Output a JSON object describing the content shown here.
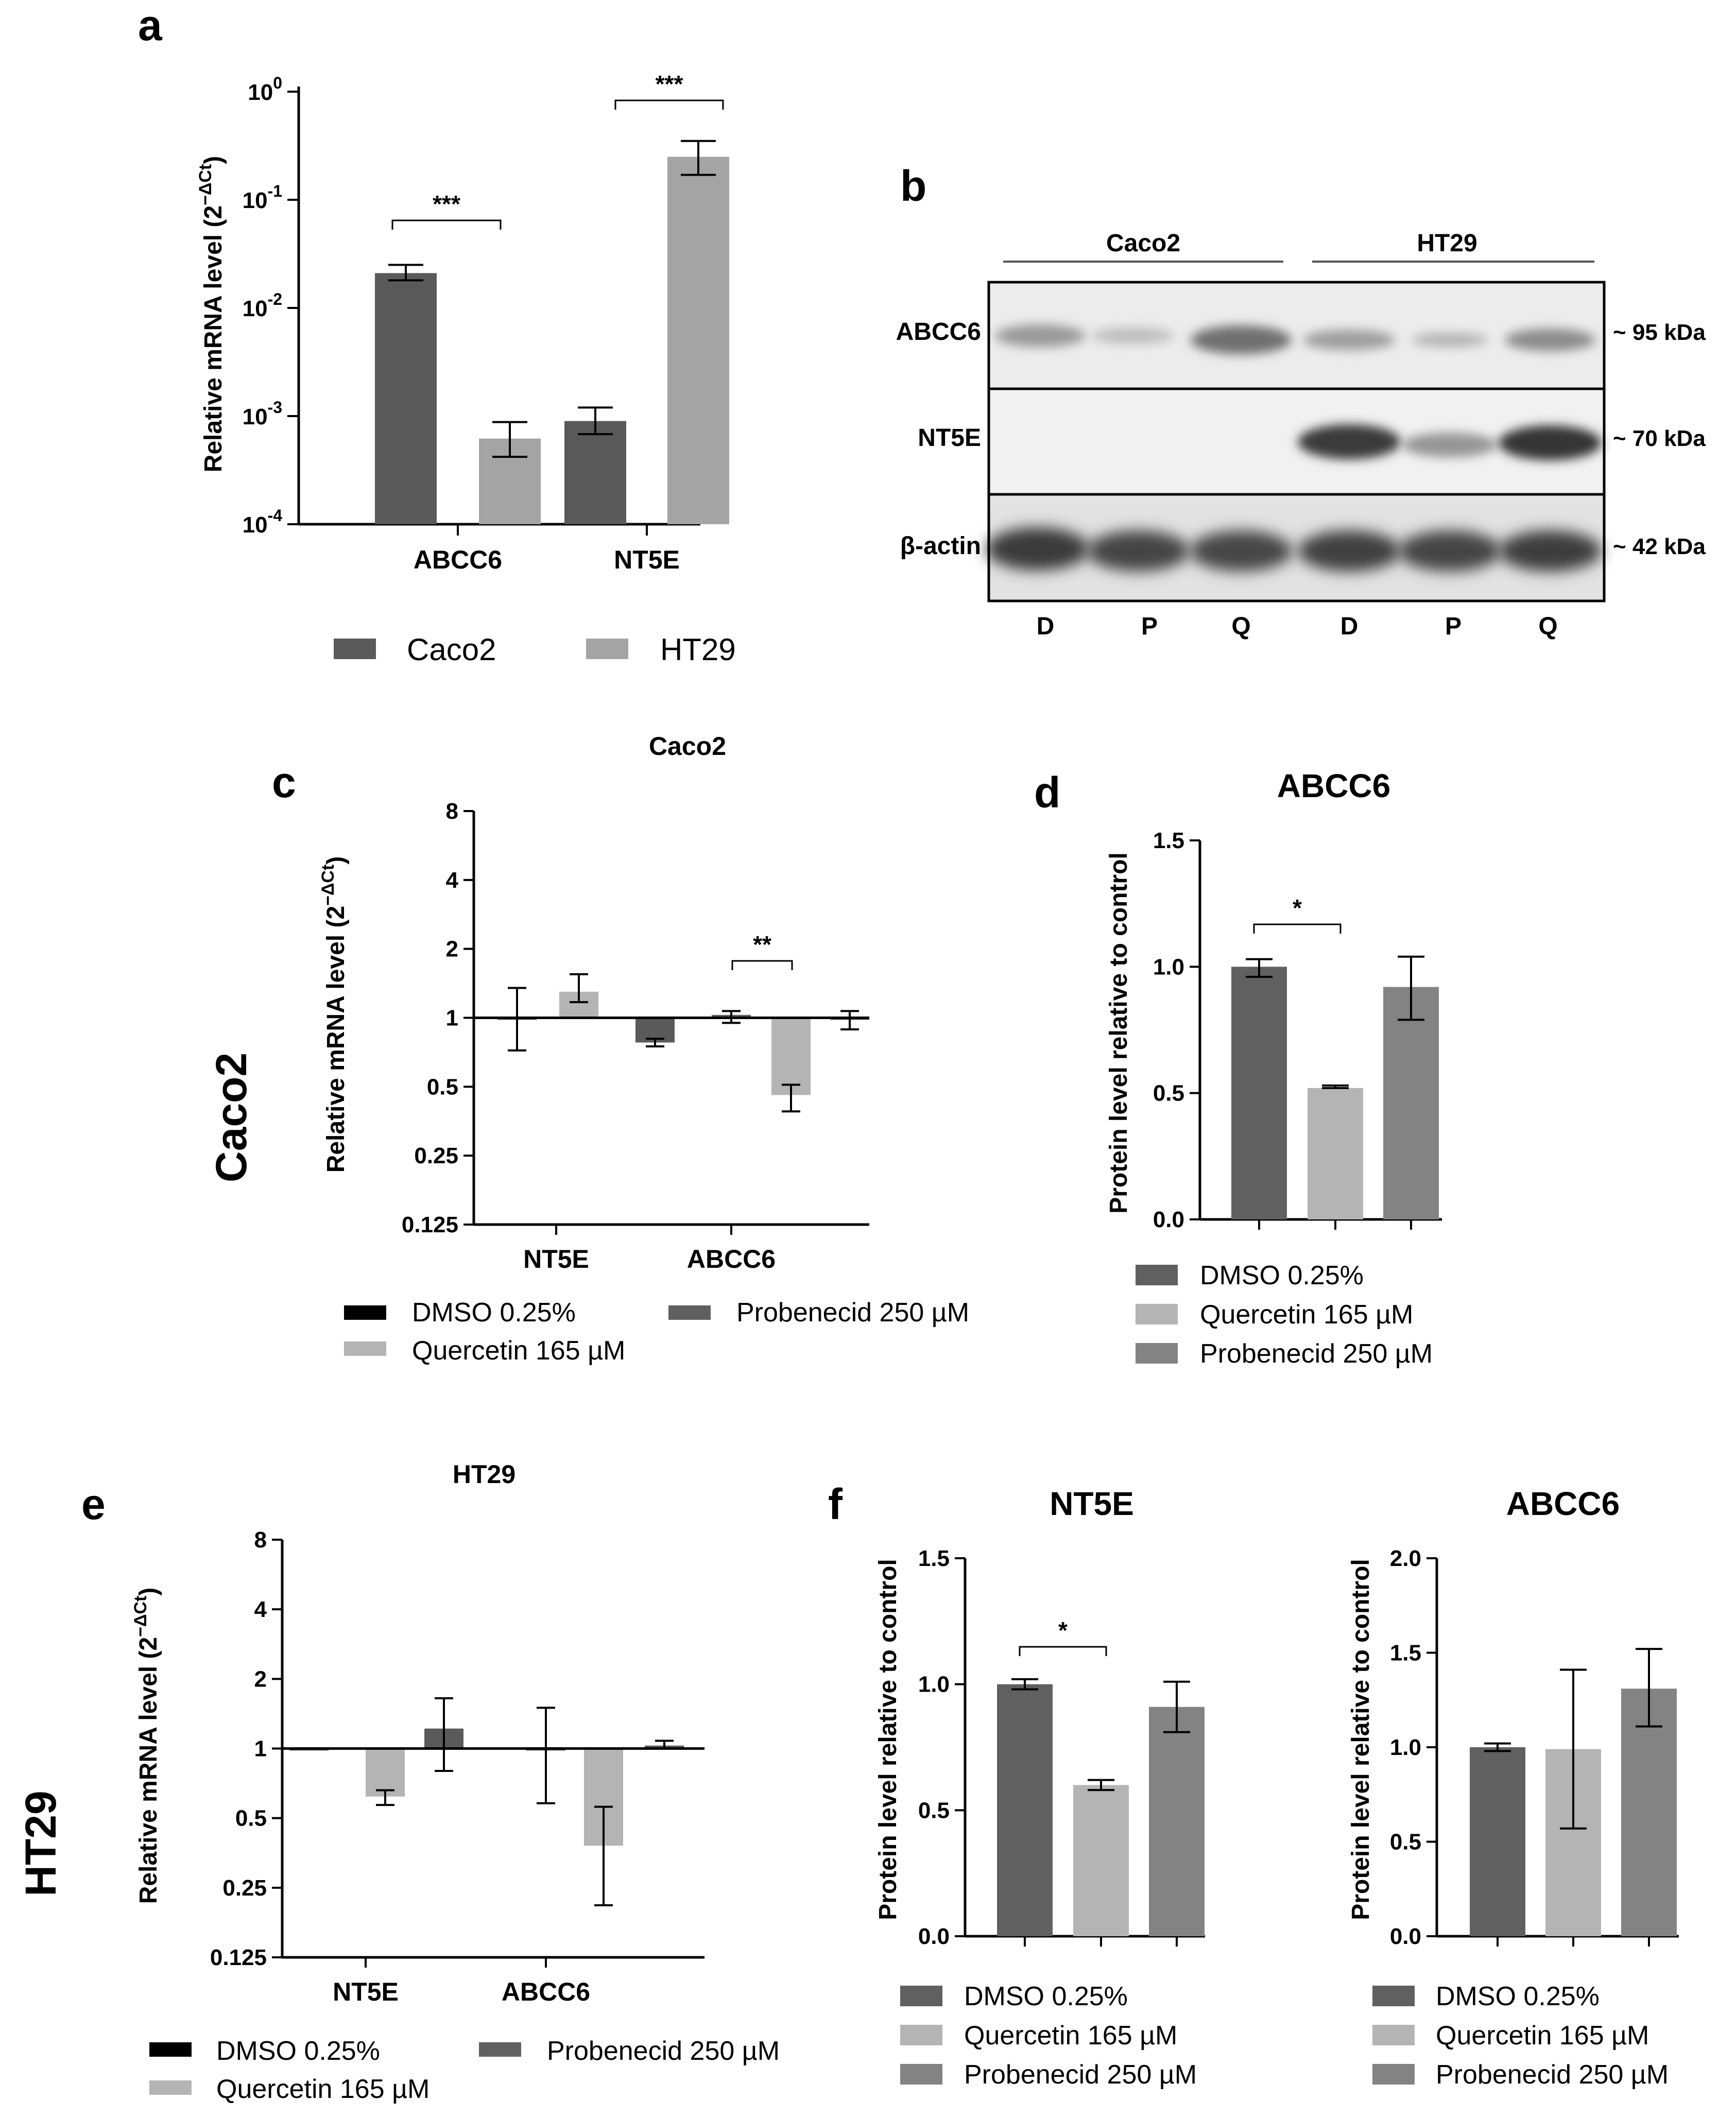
{
  "colors": {
    "caco2": "#5a5a5a",
    "ht29": "#a4a4a4",
    "dmso": "#606060",
    "quercetin": "#b4b4b4",
    "probenecid": "#838383",
    "dmso_swatch_ce": "#000000"
  },
  "side_labels": {
    "caco2": "Caco2",
    "ht29": "HT29"
  },
  "panels": {
    "a": {
      "letter": "a",
      "ylabel_main": "Relative mRNA level (2",
      "ylabel_sup": "−ΔCt",
      "ylabel_close": ")",
      "ticks": [
        {
          "base": "10",
          "exp": "0",
          "v": 1
        },
        {
          "base": "10",
          "exp": "-1",
          "v": 0.1
        },
        {
          "base": "10",
          "exp": "-2",
          "v": 0.01
        },
        {
          "base": "10",
          "exp": "-3",
          "v": 0.001
        },
        {
          "base": "10",
          "exp": "-4",
          "v": 0.0001
        }
      ],
      "legend": [
        "Caco2",
        "HT29"
      ]
    },
    "b": {
      "letter": "b",
      "groups": [
        "Caco2",
        "HT29"
      ],
      "rows": [
        "ABCC6",
        "NT5E",
        "β-actin"
      ],
      "sizes": [
        "~ 95 kDa",
        "~ 70 kDa",
        "~ 42 kDa"
      ],
      "lanes": [
        "D",
        "P",
        "Q",
        "D",
        "P",
        "Q"
      ]
    },
    "c": {
      "letter": "c",
      "title": "Caco2",
      "ylabel_main": "Relative mRNA level (2",
      "ylabel_sup": "−ΔCt",
      "ylabel_close": ")",
      "ticks": [
        "8",
        "4",
        "2",
        "1",
        "0.5",
        "0.25",
        "0.125"
      ],
      "legend": [
        "DMSO 0.25%",
        "Quercetin 165 µM",
        "Probenecid 250 µM"
      ],
      "sig": "**"
    },
    "d": {
      "letter": "d",
      "title": "ABCC6",
      "ylabel": "Protein level relative to control",
      "ticks": [
        "1.5",
        "1.0",
        "0.5",
        "0.0"
      ],
      "legend": [
        "DMSO 0.25%",
        "Quercetin 165 µM",
        "Probenecid 250 µM"
      ],
      "sig": "*"
    },
    "e": {
      "letter": "e",
      "title": "HT29",
      "ylabel_main": "Relative mRNA level (2",
      "ylabel_sup": "−ΔCt",
      "ylabel_close": ")",
      "ticks": [
        "8",
        "4",
        "2",
        "1",
        "0.5",
        "0.25",
        "0.125"
      ],
      "legend": [
        "DMSO 0.25%",
        "Quercetin 165 µM",
        "Probenecid 250 µM"
      ]
    },
    "f": {
      "letter": "f",
      "left_title": "NT5E",
      "right_title": "ABCC6",
      "ylabel": "Protein level relative to control",
      "left_ticks": [
        "1.5",
        "1.0",
        "0.5",
        "0.0"
      ],
      "right_ticks": [
        "2.0",
        "1.5",
        "1.0",
        "0.5",
        "0.0"
      ],
      "legend": [
        "DMSO 0.25%",
        "Quercetin 165 µM",
        "Probenecid 250 µM"
      ],
      "sig": "*"
    }
  },
  "chart_data": [
    {
      "panel": "a",
      "type": "bar",
      "yscale": "log",
      "ylim": [
        0.0001,
        1
      ],
      "ylabel": "Relative mRNA level (2^−ΔCt)",
      "categories": [
        "ABCC6",
        "NT5E"
      ],
      "series": [
        {
          "name": "Caco2",
          "values": [
            0.021,
            0.0009
          ],
          "err_low": [
            0.018,
            0.00068
          ],
          "err_high": [
            0.025,
            0.0012
          ]
        },
        {
          "name": "HT29",
          "values": [
            0.00062,
            0.25
          ],
          "err_low": [
            0.00042,
            0.17
          ],
          "err_high": [
            0.00088,
            0.35
          ]
        }
      ],
      "significance": [
        {
          "category": "ABCC6",
          "label": "***"
        },
        {
          "category": "NT5E",
          "label": "***"
        }
      ]
    },
    {
      "panel": "c",
      "type": "bar",
      "title": "Caco2",
      "yscale": "log2",
      "ylim": [
        0.125,
        8
      ],
      "baseline": 1,
      "ylabel": "Relative mRNA level (2^−ΔCt)",
      "categories": [
        "NT5E",
        "ABCC6"
      ],
      "series": [
        {
          "name": "DMSO 0.25%",
          "values": [
            1.0,
            1.03
          ],
          "err_low": [
            0.72,
            0.95
          ],
          "err_high": [
            1.35,
            1.07
          ]
        },
        {
          "name": "Quercetin 165 µM",
          "values": [
            1.3,
            0.46
          ],
          "err_low": [
            1.17,
            0.39
          ],
          "err_high": [
            1.55,
            0.51
          ]
        },
        {
          "name": "Probenecid 250 µM",
          "values": [
            0.78,
            1.0
          ],
          "err_low": [
            0.75,
            0.89
          ],
          "err_high": [
            0.81,
            1.07
          ]
        }
      ],
      "significance": [
        {
          "category": "ABCC6",
          "label": "**"
        }
      ]
    },
    {
      "panel": "d",
      "type": "bar",
      "title": "ABCC6",
      "ylim": [
        0,
        1.5
      ],
      "ylabel": "Protein level relative to control",
      "categories": [
        "DMSO 0.25%",
        "Quercetin 165 µM",
        "Probenecid 250 µM"
      ],
      "values": [
        1.0,
        0.52,
        0.92
      ],
      "err_low": [
        0.96,
        0.52,
        0.79
      ],
      "err_high": [
        1.03,
        0.53,
        1.04
      ],
      "significance": [
        {
          "label": "*",
          "between": [
            "DMSO 0.25%",
            "Quercetin 165 µM"
          ]
        }
      ]
    },
    {
      "panel": "e",
      "type": "bar",
      "title": "HT29",
      "yscale": "log2",
      "ylim": [
        0.125,
        8
      ],
      "baseline": 1,
      "ylabel": "Relative mRNA level (2^−ΔCt)",
      "categories": [
        "NT5E",
        "ABCC6"
      ],
      "series": [
        {
          "name": "DMSO 0.25%",
          "values": [
            1.0,
            1.0
          ],
          "err_low": [
            1.0,
            0.58
          ],
          "err_high": [
            1.0,
            1.5
          ]
        },
        {
          "name": "Quercetin 165 µM",
          "values": [
            0.62,
            0.38
          ],
          "err_low": [
            0.57,
            0.21
          ],
          "err_high": [
            0.66,
            0.56
          ]
        },
        {
          "name": "Probenecid 250 µM",
          "values": [
            1.22,
            1.03
          ],
          "err_low": [
            0.8,
            1.0
          ],
          "err_high": [
            1.65,
            1.08
          ]
        }
      ]
    },
    {
      "panel": "f-left",
      "type": "bar",
      "title": "NT5E",
      "ylim": [
        0,
        1.5
      ],
      "ylabel": "Protein level relative to control",
      "categories": [
        "DMSO 0.25%",
        "Quercetin 165 µM",
        "Probenecid 250 µM"
      ],
      "values": [
        1.0,
        0.6,
        0.91
      ],
      "err_low": [
        0.98,
        0.58,
        0.81
      ],
      "err_high": [
        1.02,
        0.62,
        1.01
      ],
      "significance": [
        {
          "label": "*",
          "between": [
            "DMSO 0.25%",
            "Quercetin 165 µM"
          ]
        }
      ]
    },
    {
      "panel": "f-right",
      "type": "bar",
      "title": "ABCC6",
      "ylim": [
        0,
        2.0
      ],
      "ylabel": "Protein level relative to control",
      "categories": [
        "DMSO 0.25%",
        "Quercetin 165 µM",
        "Probenecid 250 µM"
      ],
      "values": [
        1.0,
        0.99,
        1.31
      ],
      "err_low": [
        0.98,
        0.57,
        1.11
      ],
      "err_high": [
        1.02,
        1.41,
        1.52
      ]
    }
  ]
}
